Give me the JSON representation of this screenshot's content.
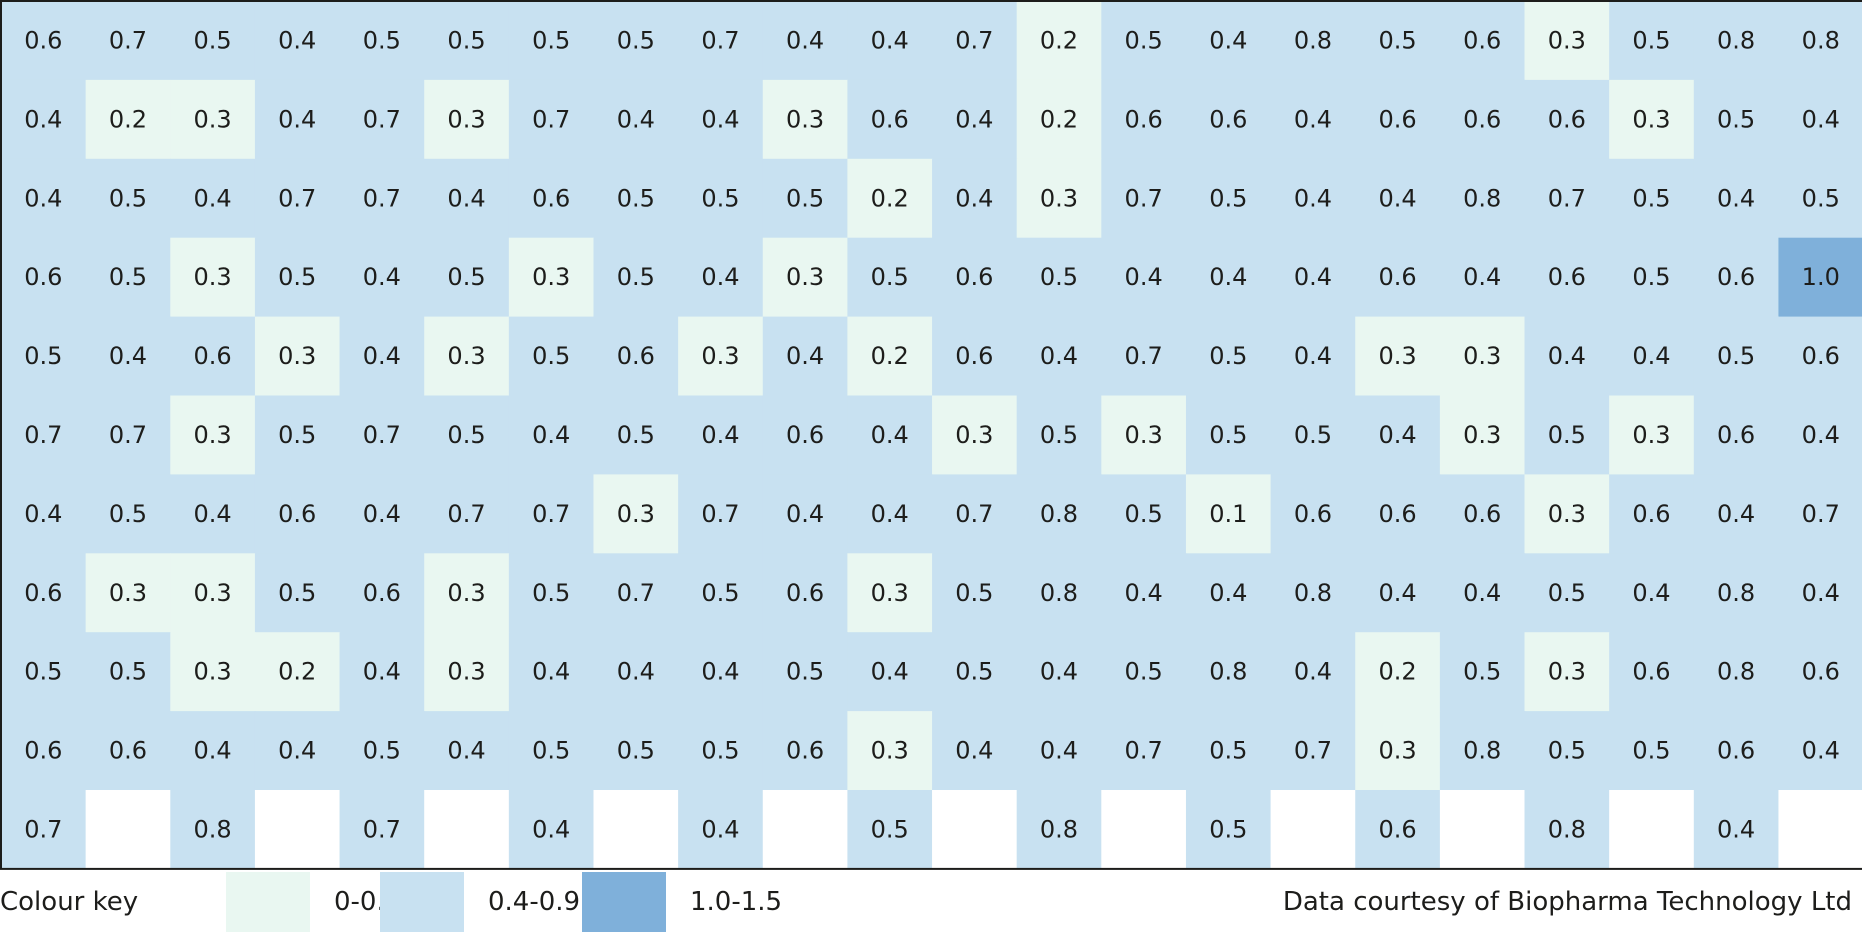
{
  "chart_data": {
    "type": "heatmap",
    "rows": 11,
    "columns": 22,
    "values": [
      [
        0.6,
        0.7,
        0.5,
        0.4,
        0.5,
        0.5,
        0.5,
        0.5,
        0.7,
        0.4,
        0.4,
        0.7,
        0.2,
        0.5,
        0.4,
        0.8,
        0.5,
        0.6,
        0.3,
        0.5,
        0.8,
        0.8
      ],
      [
        0.4,
        0.2,
        0.3,
        0.4,
        0.7,
        0.3,
        0.7,
        0.4,
        0.4,
        0.3,
        0.6,
        0.4,
        0.2,
        0.6,
        0.6,
        0.4,
        0.6,
        0.6,
        0.6,
        0.3,
        0.5,
        0.4
      ],
      [
        0.4,
        0.5,
        0.4,
        0.7,
        0.7,
        0.4,
        0.6,
        0.5,
        0.5,
        0.5,
        0.2,
        0.4,
        0.3,
        0.7,
        0.5,
        0.4,
        0.4,
        0.8,
        0.7,
        0.5,
        0.4,
        0.5
      ],
      [
        0.6,
        0.5,
        0.3,
        0.5,
        0.4,
        0.5,
        0.3,
        0.5,
        0.4,
        0.3,
        0.5,
        0.6,
        0.5,
        0.4,
        0.4,
        0.4,
        0.6,
        0.4,
        0.6,
        0.5,
        0.6,
        1.0
      ],
      [
        0.5,
        0.4,
        0.6,
        0.3,
        0.4,
        0.3,
        0.5,
        0.6,
        0.3,
        0.4,
        0.2,
        0.6,
        0.4,
        0.7,
        0.5,
        0.4,
        0.3,
        0.3,
        0.4,
        0.4,
        0.5,
        0.6
      ],
      [
        0.7,
        0.7,
        0.3,
        0.5,
        0.7,
        0.5,
        0.4,
        0.5,
        0.4,
        0.6,
        0.4,
        0.3,
        0.5,
        0.3,
        0.5,
        0.5,
        0.4,
        0.3,
        0.5,
        0.3,
        0.6,
        0.4
      ],
      [
        0.4,
        0.5,
        0.4,
        0.6,
        0.4,
        0.7,
        0.7,
        0.3,
        0.7,
        0.4,
        0.4,
        0.7,
        0.8,
        0.5,
        0.1,
        0.6,
        0.6,
        0.6,
        0.3,
        0.6,
        0.4,
        0.7
      ],
      [
        0.6,
        0.3,
        0.3,
        0.5,
        0.6,
        0.3,
        0.5,
        0.7,
        0.5,
        0.6,
        0.3,
        0.5,
        0.8,
        0.4,
        0.4,
        0.8,
        0.4,
        0.4,
        0.5,
        0.4,
        0.8,
        0.4
      ],
      [
        0.5,
        0.5,
        0.3,
        0.2,
        0.4,
        0.3,
        0.4,
        0.4,
        0.4,
        0.5,
        0.4,
        0.5,
        0.4,
        0.5,
        0.8,
        0.4,
        0.2,
        0.5,
        0.3,
        0.6,
        0.8,
        0.6
      ],
      [
        0.6,
        0.6,
        0.4,
        0.4,
        0.5,
        0.4,
        0.5,
        0.5,
        0.5,
        0.6,
        0.3,
        0.4,
        0.4,
        0.7,
        0.5,
        0.7,
        0.3,
        0.8,
        0.5,
        0.5,
        0.6,
        0.4
      ],
      [
        0.7,
        null,
        0.8,
        null,
        0.7,
        null,
        0.4,
        null,
        0.4,
        null,
        0.5,
        null,
        0.8,
        null,
        0.5,
        null,
        0.6,
        null,
        0.8,
        null,
        0.4,
        null
      ]
    ],
    "color_scale": [
      {
        "label": "0-0.3",
        "min": 0,
        "max": 0.3,
        "color": "#e9f7f1"
      },
      {
        "label": "0.4-0.9",
        "min": 0.4,
        "max": 0.9,
        "color": "#c8e1f1"
      },
      {
        "label": "1.0-1.5",
        "min": 1.0,
        "max": 1.5,
        "color": "#7fb0da"
      }
    ],
    "empty_color": "#ffffff",
    "border_color": "#1d1d1b"
  },
  "legend": {
    "title": "Colour key"
  },
  "source": "Data courtesy of Biopharma Technology Ltd"
}
